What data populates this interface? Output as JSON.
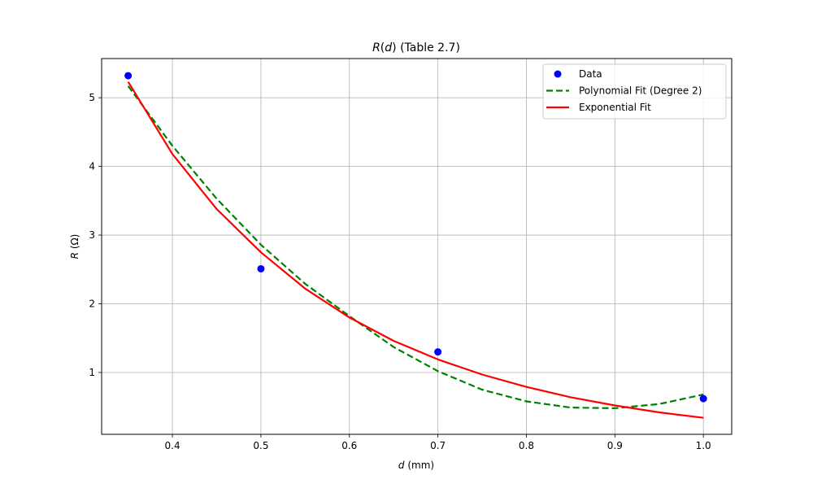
{
  "chart_data": {
    "type": "scatter",
    "title": {
      "pre": "R",
      "mid": "(",
      "var": "d",
      "post": ") (Table 2.7)"
    },
    "xlabel": {
      "var": "d",
      "unit": " (mm)"
    },
    "ylabel": {
      "var": "R",
      "unit": " (Ω)"
    },
    "xlim": [
      0.32,
      1.032
    ],
    "ylim": [
      0.1,
      5.57
    ],
    "xticks": [
      0.4,
      0.5,
      0.6,
      0.7,
      0.8,
      0.9,
      1.0
    ],
    "xtick_labels": [
      "0.4",
      "0.5",
      "0.6",
      "0.7",
      "0.8",
      "0.9",
      "1.0"
    ],
    "yticks": [
      1,
      2,
      3,
      4,
      5
    ],
    "ytick_labels": [
      "1",
      "2",
      "3",
      "4",
      "5"
    ],
    "grid": true,
    "legend_position": "top-right",
    "series": [
      {
        "name": "Data",
        "kind": "points",
        "color": "#0000ff",
        "x": [
          0.35,
          0.5,
          0.7,
          1.0
        ],
        "y": [
          5.32,
          2.51,
          1.3,
          0.62
        ]
      },
      {
        "name": "Polynomial Fit (Degree 2)",
        "kind": "dashed-line",
        "color": "#008000",
        "x": [
          0.35,
          0.4,
          0.45,
          0.5,
          0.55,
          0.6,
          0.65,
          0.7,
          0.75,
          0.8,
          0.85,
          0.9,
          0.95,
          1.0
        ],
        "y": [
          5.17,
          4.3,
          3.53,
          2.86,
          2.29,
          1.82,
          1.37,
          1.02,
          0.75,
          0.58,
          0.49,
          0.48,
          0.54,
          0.68
        ]
      },
      {
        "name": "Exponential Fit",
        "kind": "line",
        "color": "#ff0000",
        "x": [
          0.35,
          0.4,
          0.45,
          0.5,
          0.55,
          0.6,
          0.65,
          0.7,
          0.75,
          0.8,
          0.85,
          0.9,
          0.95,
          1.0
        ],
        "y": [
          5.23,
          4.18,
          3.38,
          2.75,
          2.22,
          1.8,
          1.46,
          1.19,
          0.97,
          0.79,
          0.64,
          0.52,
          0.42,
          0.34
        ]
      }
    ]
  }
}
